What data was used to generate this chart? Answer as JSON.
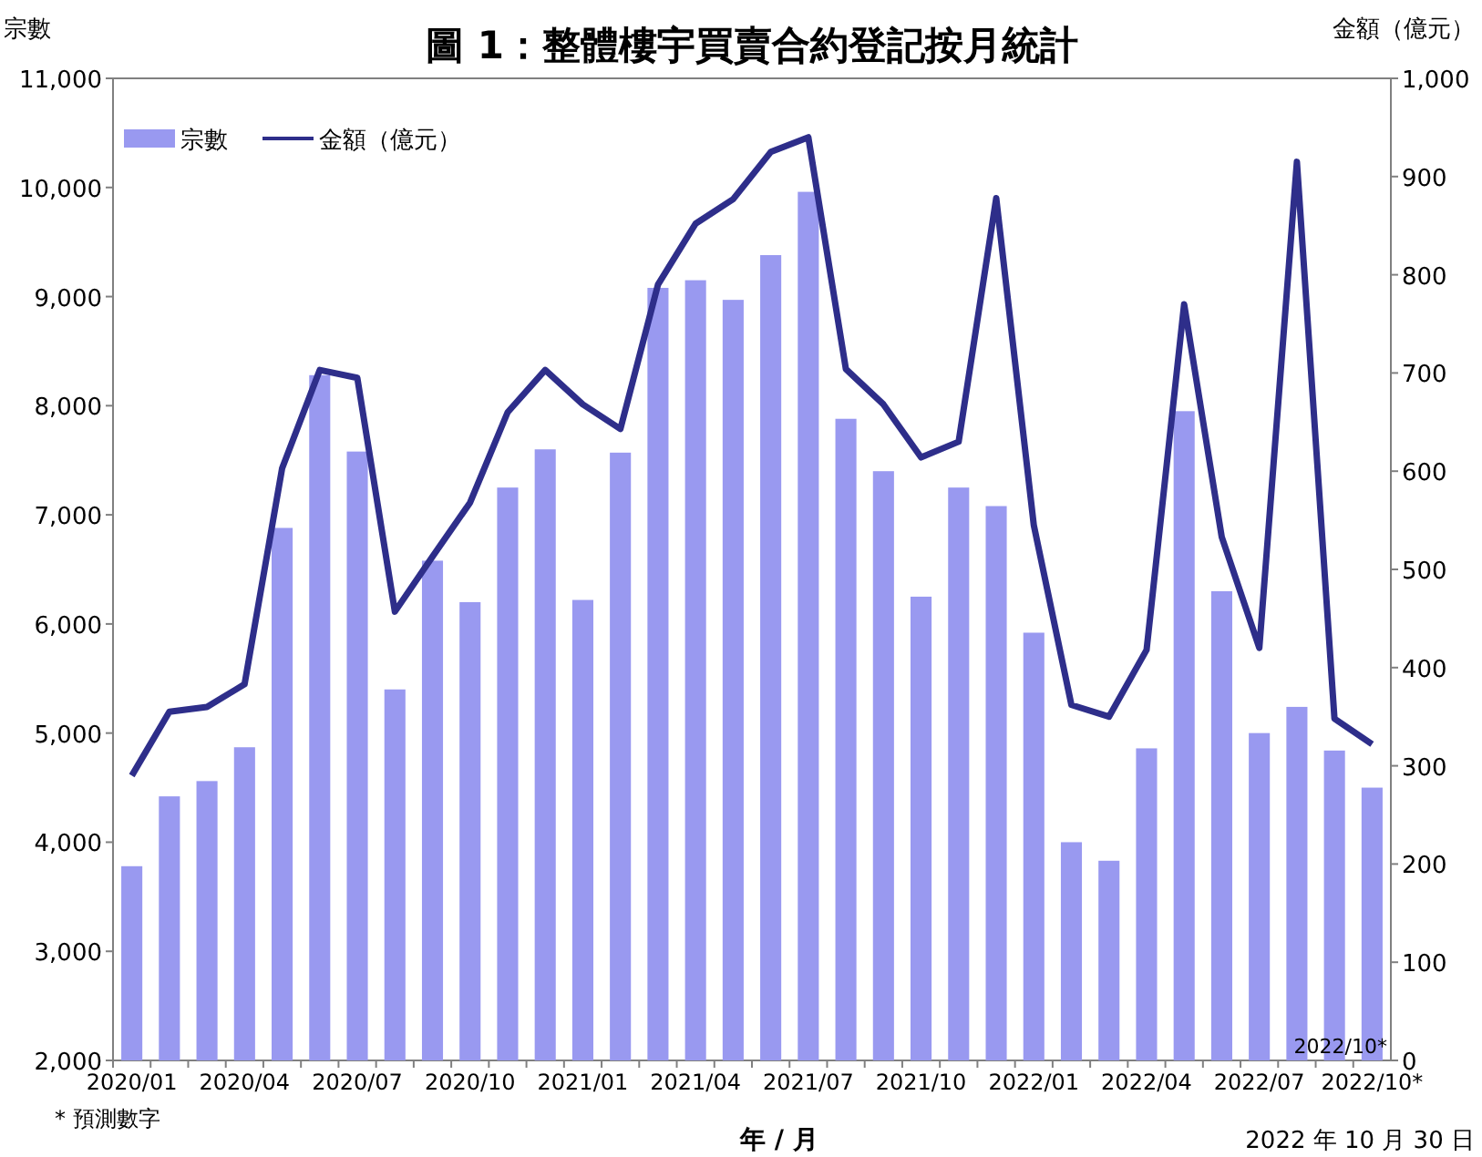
{
  "chart_data": {
    "type": "bar",
    "title": "圖 1：整體樓宇買賣合約登記按月統計",
    "xlabel": "年 / 月",
    "ylabel": "宗數",
    "y2label": "金額（億元）",
    "categories": [
      "2020/01",
      null,
      null,
      "2020/04",
      null,
      null,
      "2020/07",
      null,
      null,
      "2020/10",
      null,
      null,
      "2021/01",
      null,
      null,
      "2021/04",
      null,
      null,
      "2021/07",
      null,
      null,
      "2021/10",
      null,
      null,
      "2022/01",
      null,
      null,
      "2022/04",
      null,
      null,
      "2022/07",
      null,
      null,
      "2022/10*"
    ],
    "series": [
      {
        "name": "宗數",
        "color": "#9999f0",
        "values": [
          3780,
          4420,
          4560,
          4870,
          6880,
          8280,
          7580,
          5400,
          6580,
          6200,
          7250,
          7600,
          6220,
          7570,
          9080,
          9150,
          8970,
          9380,
          9960,
          7880,
          7400,
          6250,
          7250,
          7080,
          5920,
          4000,
          3830,
          4860,
          7950,
          6300,
          5000,
          5240,
          4840,
          4500
        ]
      },
      {
        "name": "金額（億元）",
        "type": "line",
        "axis": "y2",
        "color": "#2e2e8a",
        "values": [
          290,
          355,
          360,
          383,
          603,
          703,
          695,
          457,
          513,
          568,
          660,
          703,
          668,
          643,
          790,
          852,
          877,
          925,
          940,
          704,
          668,
          614,
          630,
          878,
          545,
          362,
          350,
          418,
          770,
          533,
          420,
          915,
          348,
          322
        ]
      }
    ],
    "ylim": [
      2000,
      11000
    ],
    "yticks": [
      {
        "value": 2000,
        "label": "2,000"
      },
      {
        "value": 3000,
        "label": "3,000"
      },
      {
        "value": 4000,
        "label": "4,000"
      },
      {
        "value": 5000,
        "label": "5,000"
      },
      {
        "value": 6000,
        "label": "6,000"
      },
      {
        "value": 7000,
        "label": "7,000"
      },
      {
        "value": 8000,
        "label": "8,000"
      },
      {
        "value": 9000,
        "label": "9,000"
      },
      {
        "value": 10000,
        "label": "10,000"
      },
      {
        "value": 11000,
        "label": "11,000"
      }
    ],
    "y2lim": [
      0,
      1000
    ],
    "y2ticks": [
      0,
      100,
      200,
      300,
      400,
      500,
      600,
      700,
      800,
      900,
      {
        "value": 1000,
        "label": "1,000"
      }
    ],
    "legend": "top left",
    "grid": false,
    "annotations": [
      "2022/10*",
      "*  預測數字",
      "2022 年 10 月 30 日"
    ]
  }
}
